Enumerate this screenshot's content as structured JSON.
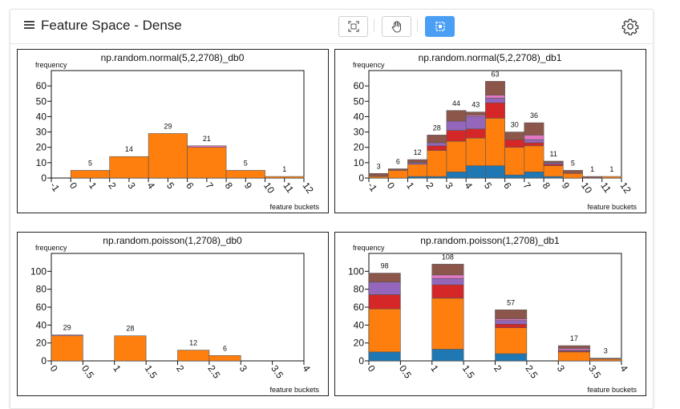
{
  "header": {
    "title": "Feature Space - Dense",
    "menu_icon": "hamburger-menu-icon",
    "tools": [
      {
        "name": "fit-view-icon",
        "active": false
      },
      {
        "name": "pan-hand-icon",
        "active": false
      },
      {
        "name": "box-select-icon",
        "active": true
      }
    ],
    "settings_icon": "gear-icon"
  },
  "colors": {
    "blue": "#1f77b4",
    "orange": "#ff7f0e",
    "red": "#d62728",
    "purple": "#9467bd",
    "brown": "#8c564b",
    "pink": "#e377c2",
    "active_tool": "#4a9ff5"
  },
  "chart_data": [
    {
      "type": "bar",
      "title": "np.random.normal(5,2,2708)_db0",
      "ylabel": "frequency",
      "xlabel": "feature buckets",
      "xlim": [
        -1,
        12
      ],
      "ylim": [
        0,
        70
      ],
      "yticks": [
        0,
        10,
        20,
        30,
        40,
        50,
        60
      ],
      "xticks": [
        "-1",
        "0",
        "1",
        "2",
        "3",
        "4",
        "5",
        "6",
        "7",
        "8",
        "9",
        "10",
        "11",
        "12"
      ],
      "bin_width": 2,
      "stack_order": [
        "blue",
        "orange",
        "red",
        "purple",
        "pink",
        "brown"
      ],
      "bars": [
        {
          "x": 0,
          "label": "5",
          "segments": [
            0,
            5,
            0,
            0,
            0,
            0
          ]
        },
        {
          "x": 2,
          "label": "14",
          "segments": [
            0,
            14,
            0,
            0,
            0,
            0
          ]
        },
        {
          "x": 4,
          "label": "29",
          "segments": [
            0,
            29,
            0,
            0,
            0,
            0
          ]
        },
        {
          "x": 6,
          "label": "21",
          "segments": [
            0,
            20,
            0,
            0,
            1,
            0
          ]
        },
        {
          "x": 8,
          "label": "5",
          "segments": [
            0,
            5,
            0,
            0,
            0,
            0
          ]
        },
        {
          "x": 10,
          "label": "1",
          "segments": [
            0,
            1,
            0,
            0,
            0,
            0
          ]
        }
      ]
    },
    {
      "type": "bar",
      "title": "np.random.normal(5,2,2708)_db1",
      "ylabel": "frequency",
      "xlabel": "feature buckets",
      "xlim": [
        -1,
        12
      ],
      "ylim": [
        0,
        70
      ],
      "yticks": [
        0,
        10,
        20,
        30,
        40,
        50,
        60
      ],
      "xticks": [
        "-1",
        "0",
        "1",
        "2",
        "3",
        "4",
        "5",
        "6",
        "7",
        "8",
        "9",
        "10",
        "11",
        "12"
      ],
      "bin_width": 1,
      "stack_order": [
        "blue",
        "orange",
        "red",
        "purple",
        "pink",
        "brown"
      ],
      "bars": [
        {
          "x": -1,
          "label": "3",
          "segments": [
            0,
            1,
            0,
            0,
            0,
            2
          ]
        },
        {
          "x": 0,
          "label": "6",
          "segments": [
            0,
            5,
            0,
            0,
            0,
            1
          ]
        },
        {
          "x": 1,
          "label": "12",
          "segments": [
            1,
            8,
            0,
            1,
            0,
            2
          ]
        },
        {
          "x": 2,
          "label": "28",
          "segments": [
            1,
            17,
            3,
            2,
            0,
            5
          ]
        },
        {
          "x": 3,
          "label": "44",
          "segments": [
            4,
            20,
            7,
            6,
            0,
            7
          ]
        },
        {
          "x": 4,
          "label": "43",
          "segments": [
            8,
            18,
            6,
            8,
            1,
            2
          ]
        },
        {
          "x": 5,
          "label": "63",
          "segments": [
            8,
            31,
            10,
            3,
            2,
            9
          ]
        },
        {
          "x": 6,
          "label": "30",
          "segments": [
            2,
            18,
            5,
            0,
            0,
            5
          ]
        },
        {
          "x": 7,
          "label": "36",
          "segments": [
            4,
            17,
            2,
            2,
            3,
            8
          ]
        },
        {
          "x": 8,
          "label": "11",
          "segments": [
            1,
            7,
            1,
            1,
            0,
            1
          ]
        },
        {
          "x": 9,
          "label": "5",
          "segments": [
            0,
            3,
            0,
            0,
            0,
            2
          ]
        },
        {
          "x": 10,
          "label": "1",
          "segments": [
            0,
            0,
            0,
            0,
            0,
            1
          ]
        },
        {
          "x": 11,
          "label": "1",
          "segments": [
            0,
            1,
            0,
            0,
            0,
            0
          ]
        }
      ]
    },
    {
      "type": "bar",
      "title": "np.random.poisson(1,2708)_db0",
      "ylabel": "frequency",
      "xlabel": "feature buckets",
      "xlim": [
        0,
        4
      ],
      "ylim": [
        0,
        120
      ],
      "yticks": [
        0,
        20,
        40,
        60,
        80,
        100
      ],
      "xticks": [
        "0",
        "0.5",
        "1",
        "1.5",
        "2",
        "2.5",
        "3",
        "3.5",
        "4"
      ],
      "bin_width": 0.5,
      "stack_order": [
        "blue",
        "orange",
        "red",
        "purple",
        "pink",
        "brown"
      ],
      "bars": [
        {
          "x": 0,
          "label": "29",
          "segments": [
            0,
            28,
            0,
            0,
            1,
            0
          ]
        },
        {
          "x": 1,
          "label": "28",
          "segments": [
            0,
            28,
            0,
            0,
            0,
            0
          ]
        },
        {
          "x": 2,
          "label": "12",
          "segments": [
            0,
            12,
            0,
            0,
            0,
            0
          ]
        },
        {
          "x": 2.5,
          "label": "6",
          "segments": [
            0,
            6,
            0,
            0,
            0,
            0
          ]
        }
      ]
    },
    {
      "type": "bar",
      "title": "np.random.poisson(1,2708)_db1",
      "ylabel": "frequency",
      "xlabel": "feature buckets",
      "xlim": [
        0,
        4
      ],
      "ylim": [
        0,
        120
      ],
      "yticks": [
        0,
        20,
        40,
        60,
        80,
        100
      ],
      "xticks": [
        "0",
        "0.5",
        "1",
        "1.5",
        "2",
        "2.5",
        "3",
        "3.5",
        "4"
      ],
      "bin_width": 0.5,
      "stack_order": [
        "blue",
        "orange",
        "red",
        "purple",
        "pink",
        "brown"
      ],
      "bars": [
        {
          "x": 0,
          "label": "98",
          "segments": [
            10,
            48,
            16,
            14,
            0,
            10
          ]
        },
        {
          "x": 1,
          "label": "108",
          "segments": [
            13,
            57,
            15,
            7,
            4,
            12
          ]
        },
        {
          "x": 2,
          "label": "57",
          "segments": [
            8,
            29,
            4,
            4,
            2,
            10
          ]
        },
        {
          "x": 3,
          "label": "17",
          "segments": [
            0,
            10,
            1,
            1,
            2,
            3
          ]
        },
        {
          "x": 3.5,
          "label": "3",
          "segments": [
            0,
            2,
            0,
            0,
            0,
            1
          ]
        }
      ]
    }
  ]
}
